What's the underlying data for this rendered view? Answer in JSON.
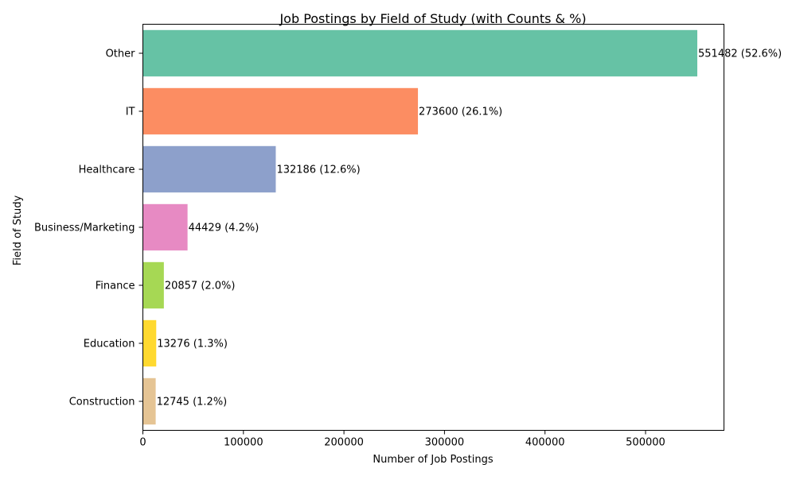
{
  "chart_data": {
    "type": "bar",
    "orientation": "horizontal",
    "title": "Job Postings by Field of Study (with Counts & %)",
    "xlabel": "Number of Job Postings",
    "ylabel": "Field of Study",
    "categories": [
      "Other",
      "IT",
      "Healthcare",
      "Business/Marketing",
      "Finance",
      "Education",
      "Construction"
    ],
    "values": [
      551482,
      273600,
      132186,
      44429,
      20857,
      13276,
      12745
    ],
    "data_labels": [
      "551482 (52.6%)",
      "273600 (26.1%)",
      "132186 (12.6%)",
      "44429 (4.2%)",
      "20857 (2.0%)",
      "13276 (1.3%)",
      "12745 (1.2%)"
    ],
    "colors": [
      "#66c2a5",
      "#fc8d62",
      "#8da0cb",
      "#e78ac3",
      "#a6d854",
      "#ffd92f",
      "#e5c494"
    ],
    "xlim": [
      0,
      578000
    ],
    "xticks": [
      0,
      100000,
      200000,
      300000,
      400000,
      500000
    ],
    "xtick_labels": [
      "0",
      "100000",
      "200000",
      "300000",
      "400000",
      "500000"
    ],
    "grid": false,
    "legend": "none"
  }
}
